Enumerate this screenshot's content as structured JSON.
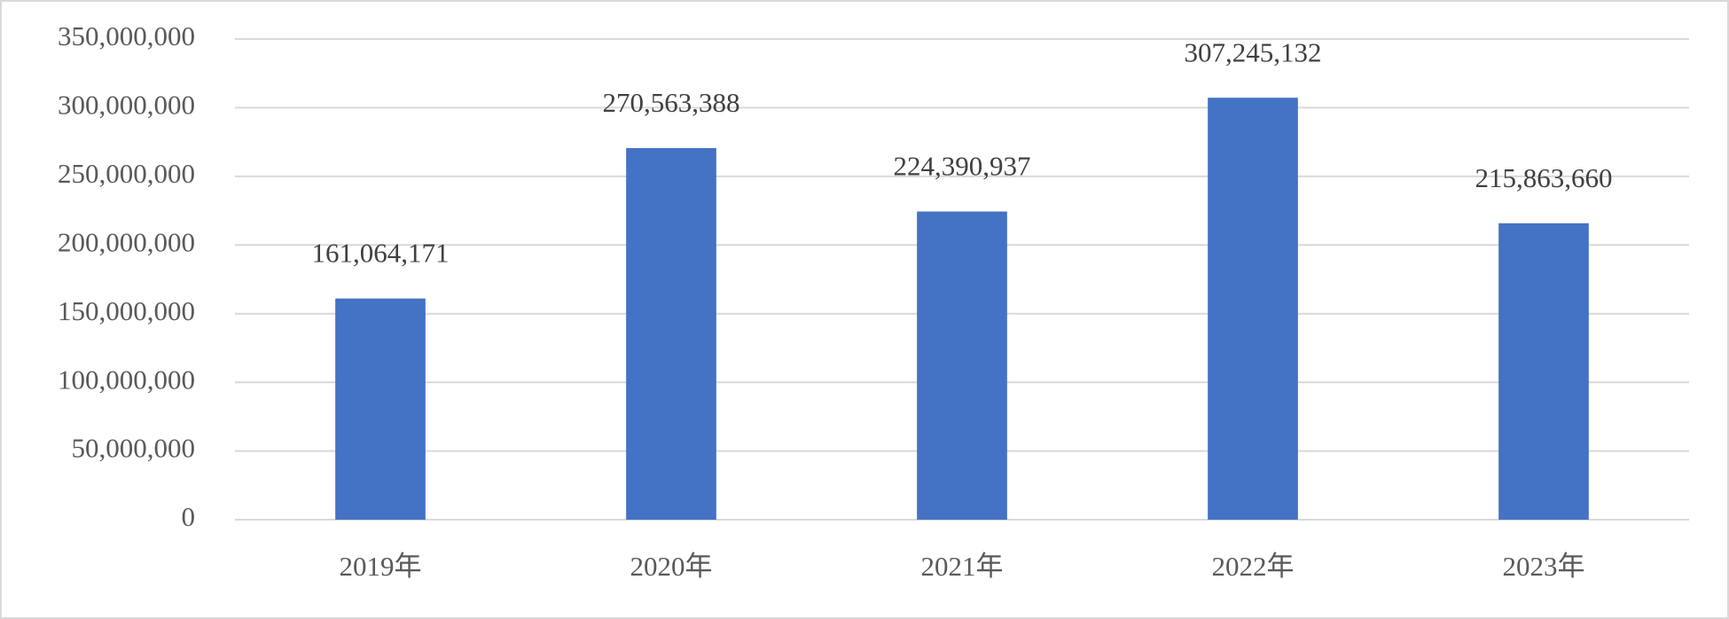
{
  "chart_data": {
    "type": "bar",
    "categories": [
      "2019年",
      "2020年",
      "2021年",
      "2022年",
      "2023年"
    ],
    "values": [
      161064171,
      270563388,
      224390937,
      307245132,
      215863660
    ],
    "value_labels": [
      "161,064,171",
      "270,563,388",
      "224,390,937",
      "307,245,132",
      "215,863,660"
    ],
    "color": "#4472c4",
    "ylim": [
      0,
      350000000
    ],
    "yticks": [
      0,
      {
        "value": 50000000,
        "label": "50,000,000"
      },
      {
        "value": 100000000,
        "label": "100,000,000"
      },
      {
        "value": 150000000,
        "label": "150,000,000"
      },
      {
        "value": 200000000,
        "label": "200,000,000"
      },
      {
        "value": 250000000,
        "label": "250,000,000"
      },
      {
        "value": 300000000,
        "label": "300,000,000"
      },
      {
        "value": 350000000,
        "label": "350,000,000"
      }
    ],
    "grid": true
  }
}
